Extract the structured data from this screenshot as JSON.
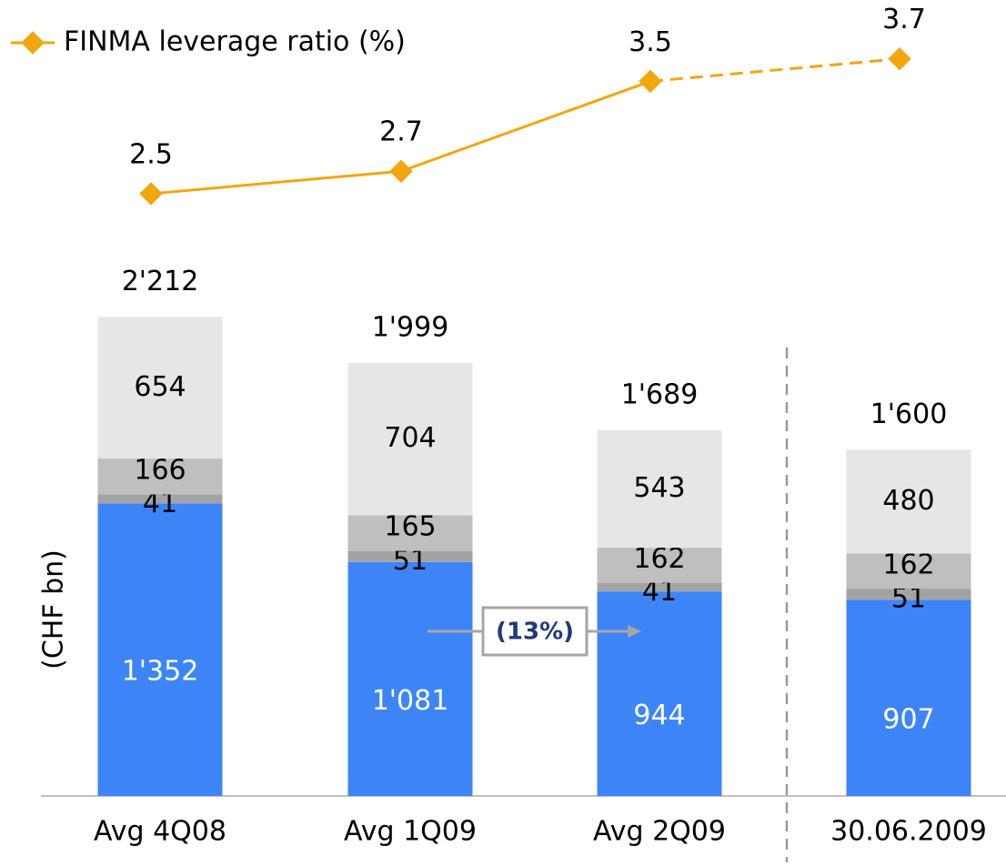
{
  "chart_data": {
    "type": "bar",
    "stacked": true,
    "categories": [
      "Avg 4Q08",
      "Avg 1Q09",
      "Avg 2Q09",
      "30.06.2009"
    ],
    "ylabel": "(CHF bn)",
    "ylim": [
      0,
      2400
    ],
    "series": [
      {
        "color": "#3d85f7",
        "values": [
          1352,
          1081,
          944,
          907
        ],
        "value_labels": [
          "1'352",
          "1'081",
          "944",
          "907"
        ],
        "label_color": "#ffffff"
      },
      {
        "color": "#a3a3a3",
        "values": [
          41,
          51,
          41,
          51
        ],
        "label_color": "#000000"
      },
      {
        "color": "#bfbfbf",
        "values": [
          166,
          165,
          162,
          162
        ],
        "label_color": "#000000"
      },
      {
        "color": "#e6e6e6",
        "values": [
          654,
          704,
          543,
          480
        ],
        "label_color": "#000000"
      }
    ],
    "totals": {
      "values": [
        2212,
        1999,
        1689,
        1600
      ],
      "value_labels": [
        "2'212",
        "1'999",
        "1'689",
        "1'600"
      ]
    },
    "line": {
      "type": "line",
      "name": "FINMA leverage ratio (%)",
      "color": "#f2a60d",
      "values": [
        2.5,
        2.7,
        3.5,
        3.7
      ],
      "axis": "y2",
      "dashed_last_segment": true
    },
    "y2lim": [
      2.2,
      3.9
    ],
    "annotation": {
      "text": "(13%)",
      "color": "#1f3a7a"
    }
  }
}
